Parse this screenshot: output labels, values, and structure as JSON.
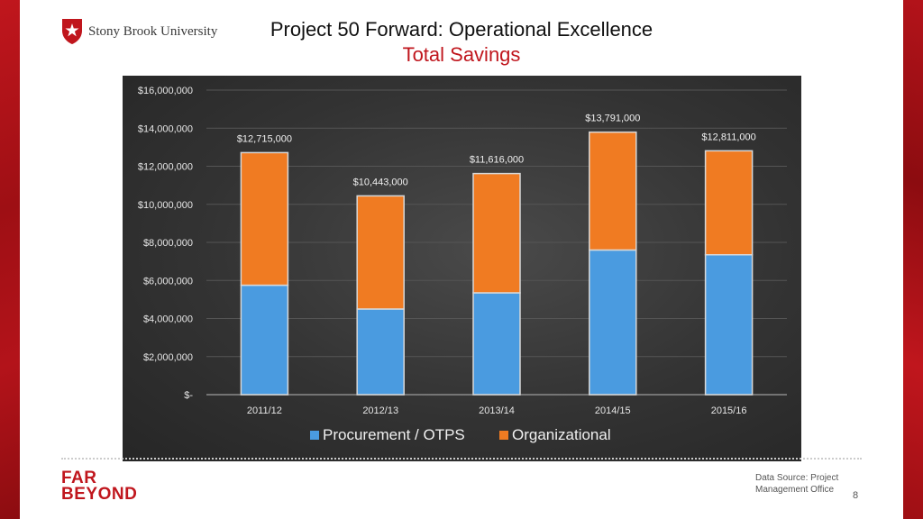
{
  "header": {
    "logo_text": "Stony Brook University",
    "title": "Project 50 Forward: Operational Excellence",
    "subtitle": "Total Savings"
  },
  "chart_data": {
    "type": "bar",
    "stacked": true,
    "categories": [
      "2011/12",
      "2012/13",
      "2013/14",
      "2014/15",
      "2015/16"
    ],
    "series": [
      {
        "name": "Procurement / OTPS",
        "values": [
          5750000,
          4500000,
          5350000,
          7600000,
          7350000
        ],
        "color": "#4a9be0"
      },
      {
        "name": "Organizational",
        "values": [
          6965000,
          5943000,
          6266000,
          6191000,
          5461000
        ],
        "color": "#f07b22"
      }
    ],
    "totals": [
      12715000,
      10443000,
      11616000,
      13791000,
      12811000
    ],
    "total_labels": [
      "$12,715,000",
      "$10,443,000",
      "$11,616,000",
      "$13,791,000",
      "$12,811,000"
    ],
    "yticks": [
      0,
      2000000,
      4000000,
      6000000,
      8000000,
      10000000,
      12000000,
      14000000,
      16000000
    ],
    "ytick_labels": [
      "$-",
      "$2,000,000",
      "$4,000,000",
      "$6,000,000",
      "$8,000,000",
      "$10,000,000",
      "$12,000,000",
      "$14,000,000",
      "$16,000,000"
    ],
    "ylim": [
      0,
      16000000
    ],
    "grid": true,
    "legend": "bottom"
  },
  "footer": {
    "brand_line1": "FAR",
    "brand_line2": "BEYOND",
    "source": "Data Source: Project Management Office",
    "page": "8"
  }
}
